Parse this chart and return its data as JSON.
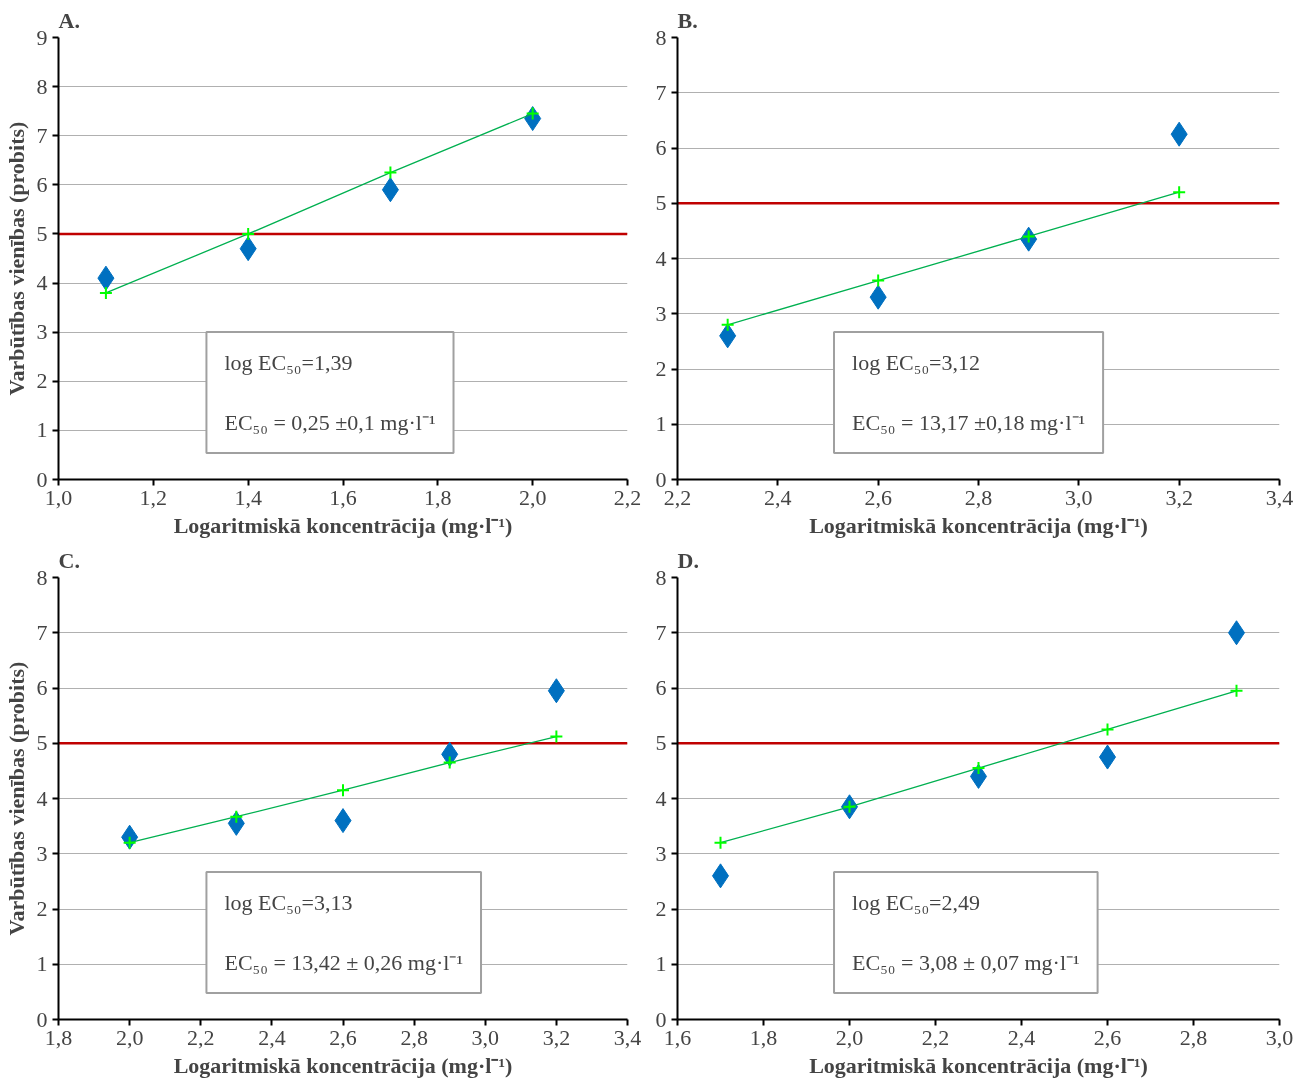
{
  "chart_data": [
    {
      "type": "scatter",
      "title": "A.",
      "xlabel": "Logaritmiskā koncentrācija (mg·l⁻¹)",
      "ylabel": "Varbūtības vienības (probits)",
      "xlim": [
        1.0,
        2.2
      ],
      "xticks": [
        {
          "value": 1.0,
          "label": "1,0"
        },
        {
          "value": 1.2,
          "label": "1,2"
        },
        {
          "value": 1.4,
          "label": "1,4"
        },
        {
          "value": 1.6,
          "label": "1,6"
        },
        {
          "value": 1.8,
          "label": "1,8"
        },
        {
          "value": 2.0,
          "label": "2,0"
        },
        {
          "value": 2.2,
          "label": "2,2"
        }
      ],
      "ylim": [
        0,
        9
      ],
      "yticks": [
        0,
        1,
        2,
        3,
        4,
        5,
        6,
        7,
        8,
        9
      ],
      "grid": "y",
      "x": [
        1.1,
        1.4,
        1.7,
        2.0
      ],
      "series": [
        {
          "marker": "diamond",
          "color": "#0070c0",
          "values": [
            4.1,
            4.7,
            5.9,
            7.35
          ]
        },
        {
          "type": "line",
          "marker": "cross",
          "color": "#00b050",
          "values": [
            3.8,
            5.0,
            6.25,
            7.45
          ]
        }
      ],
      "ref_lines": [
        {
          "axis": "y",
          "value": 5,
          "color": "#c00000"
        }
      ],
      "annotations": [
        "log EC₅₀=1,39",
        "EC₅₀ = 0,25 ±0,1 mg·l⁻¹"
      ]
    },
    {
      "type": "scatter",
      "title": "B.",
      "xlabel": "Logaritmiskā koncentrācija (mg·l⁻¹)",
      "xlim": [
        2.2,
        3.4
      ],
      "xticks": [
        {
          "value": 2.2,
          "label": "2,2"
        },
        {
          "value": 2.4,
          "label": "2,4"
        },
        {
          "value": 2.6,
          "label": "2,6"
        },
        {
          "value": 2.8,
          "label": "2,8"
        },
        {
          "value": 3.0,
          "label": "3,0"
        },
        {
          "value": 3.2,
          "label": "3,2"
        },
        {
          "value": 3.4,
          "label": "3,4"
        }
      ],
      "ylim": [
        0,
        8
      ],
      "yticks": [
        0,
        1,
        2,
        3,
        4,
        5,
        6,
        7,
        8
      ],
      "grid": "y",
      "x": [
        2.3,
        2.6,
        2.9,
        3.2
      ],
      "series": [
        {
          "marker": "diamond",
          "color": "#0070c0",
          "values": [
            2.6,
            3.3,
            4.35,
            6.25
          ]
        },
        {
          "type": "line",
          "marker": "cross",
          "color": "#00b050",
          "values": [
            2.8,
            3.6,
            4.4,
            5.2
          ]
        }
      ],
      "ref_lines": [
        {
          "axis": "y",
          "value": 5,
          "color": "#c00000"
        }
      ],
      "annotations": [
        "log EC₅₀=3,12",
        "EC₅₀ = 13,17 ±0,18 mg·l⁻¹"
      ]
    },
    {
      "type": "scatter",
      "title": "C.",
      "xlabel": "Logaritmiskā koncentrācija (mg·l⁻¹)",
      "ylabel": "Varbūtības vienības (probits)",
      "xlim": [
        1.8,
        3.4
      ],
      "xticks": [
        {
          "value": 1.8,
          "label": "1,8"
        },
        {
          "value": 2.0,
          "label": "2,0"
        },
        {
          "value": 2.2,
          "label": "2,2"
        },
        {
          "value": 2.4,
          "label": "2,4"
        },
        {
          "value": 2.6,
          "label": "2,6"
        },
        {
          "value": 2.8,
          "label": "2,8"
        },
        {
          "value": 3.0,
          "label": "3,0"
        },
        {
          "value": 3.2,
          "label": "3,2"
        },
        {
          "value": 3.4,
          "label": "3,4"
        }
      ],
      "ylim": [
        0,
        8
      ],
      "yticks": [
        0,
        1,
        2,
        3,
        4,
        5,
        6,
        7,
        8
      ],
      "grid": "y",
      "x": [
        2.0,
        2.3,
        2.6,
        2.9,
        3.2
      ],
      "series": [
        {
          "marker": "diamond",
          "color": "#0070c0",
          "values": [
            3.3,
            3.55,
            3.6,
            4.8,
            5.95
          ]
        },
        {
          "type": "line",
          "marker": "cross",
          "color": "#00b050",
          "values": [
            3.2,
            3.67,
            4.15,
            4.65,
            5.12
          ]
        }
      ],
      "ref_lines": [
        {
          "axis": "y",
          "value": 5,
          "color": "#c00000"
        }
      ],
      "annotations": [
        "log EC₅₀=3,13",
        "EC₅₀ = 13,42 ± 0,26 mg·l⁻¹"
      ]
    },
    {
      "type": "scatter",
      "title": "D.",
      "xlabel": "Logaritmiskā koncentrācija (mg·l⁻¹)",
      "xlim": [
        1.6,
        3.0
      ],
      "xticks": [
        {
          "value": 1.6,
          "label": "1,6"
        },
        {
          "value": 1.8,
          "label": "1,8"
        },
        {
          "value": 2.0,
          "label": "2,0"
        },
        {
          "value": 2.2,
          "label": "2,2"
        },
        {
          "value": 2.4,
          "label": "2,4"
        },
        {
          "value": 2.6,
          "label": "2,6"
        },
        {
          "value": 2.8,
          "label": "2,8"
        },
        {
          "value": 3.0,
          "label": "3,0"
        }
      ],
      "ylim": [
        0,
        8
      ],
      "yticks": [
        0,
        1,
        2,
        3,
        4,
        5,
        6,
        7,
        8
      ],
      "grid": "y",
      "x": [
        1.7,
        2.0,
        2.3,
        2.6,
        2.9
      ],
      "series": [
        {
          "marker": "diamond",
          "color": "#0070c0",
          "values": [
            2.6,
            3.85,
            4.4,
            4.75,
            7.0
          ]
        },
        {
          "type": "line",
          "marker": "cross",
          "color": "#00b050",
          "values": [
            3.2,
            3.85,
            4.55,
            5.25,
            5.95
          ]
        }
      ],
      "ref_lines": [
        {
          "axis": "y",
          "value": 5,
          "color": "#c00000"
        }
      ],
      "annotations": [
        "log EC₅₀=2,49",
        "EC₅₀ = 3,08 ± 0,07 mg·l⁻¹"
      ]
    }
  ]
}
